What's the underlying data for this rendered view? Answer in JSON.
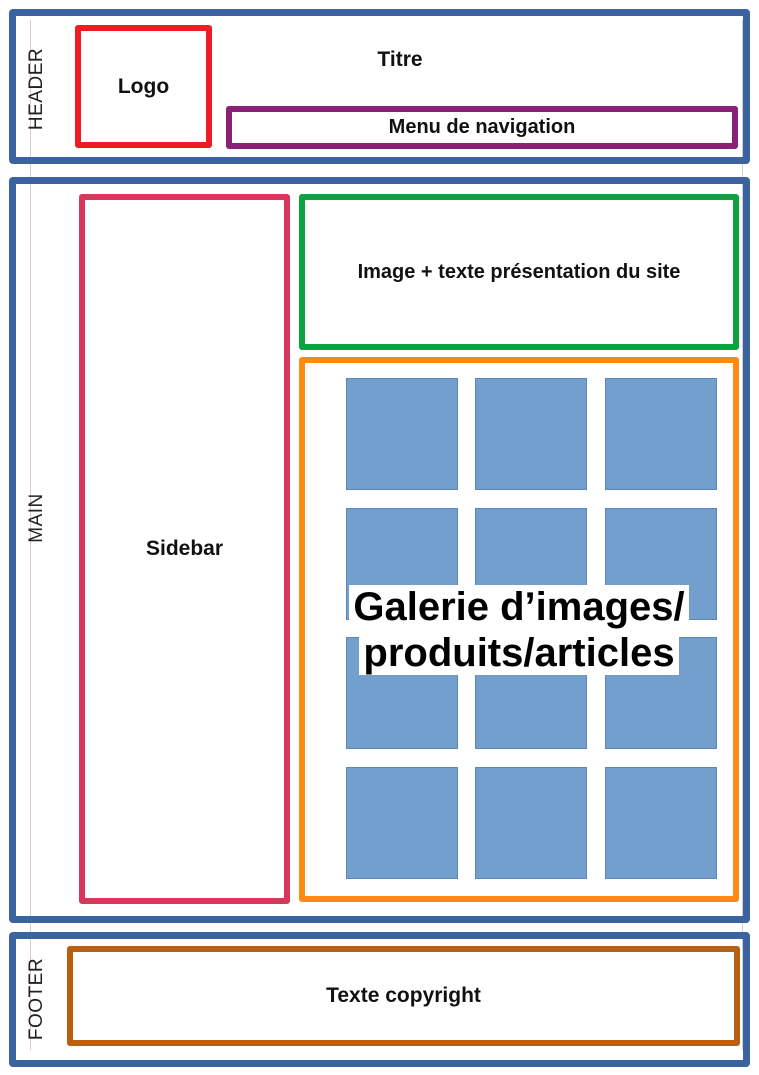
{
  "header": {
    "section_label": "HEADER",
    "logo": "Logo",
    "title": "Titre",
    "nav": "Menu de navigation"
  },
  "main": {
    "section_label": "MAIN",
    "sidebar": "Sidebar",
    "presentation": "Image + texte présentation du site",
    "gallery": {
      "label_line1": "Galerie d’images/",
      "label_line2": "produits/articles"
    }
  },
  "footer": {
    "section_label": "FOOTER",
    "copyright": "Texte copyright"
  },
  "colors": {
    "section_border": "#3a63a0",
    "logo_border": "#ee1c23",
    "nav_border": "#8b2176",
    "sidebar_border": "#d8365a",
    "presentation_border": "#0ba340",
    "gallery_border": "#ff8a0d",
    "footer_border": "#b8600f",
    "tile_fill": "#739fcf"
  }
}
